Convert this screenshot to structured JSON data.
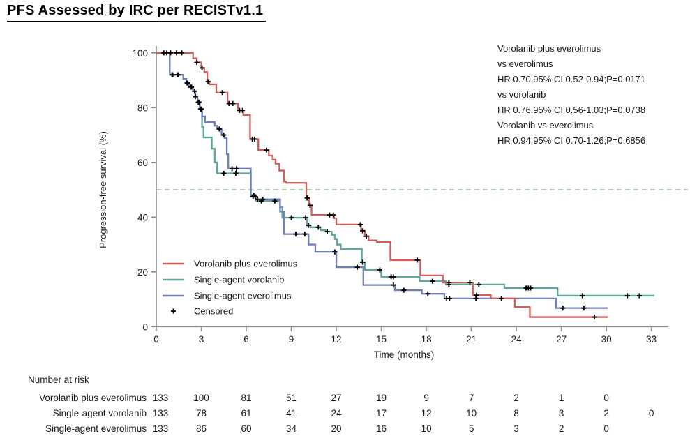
{
  "title": "PFS Assessed by IRC per RECISTv1.1",
  "chart_data": {
    "type": "line",
    "subtype": "kaplan-meier-step",
    "title": "PFS Assessed by IRC per RECISTv1.1",
    "xlabel": "Time (months)",
    "ylabel": "Progression-free survival (%)",
    "xlim": [
      0,
      33
    ],
    "ylim": [
      0,
      100
    ],
    "x_ticks": [
      0,
      3,
      6,
      9,
      12,
      15,
      18,
      21,
      24,
      27,
      30,
      33
    ],
    "y_ticks": [
      0,
      20,
      40,
      60,
      80,
      100
    ],
    "grid": "off",
    "reference_line": {
      "y": 50,
      "style": "dashed",
      "color": "#8cc98c"
    },
    "annotation_lines": [
      "Vorolanib plus everolimus",
      "vs everolimus",
      "HR 0.70,95% CI 0.52-0.94;P=0.0171",
      "vs vorolanib",
      "HR 0.76,95% CI 0.56-1.03;P=0.0738",
      "Vorolanib vs everolimus",
      "HR 0.94,95% CI 0.70-1.26;P=0.6856"
    ],
    "legend_position": "inside-lower-left",
    "legend": [
      {
        "label": "Vorolanib plus everolimus",
        "marker": "line",
        "color": "#cd5f5b"
      },
      {
        "label": "Single-agent vorolanib",
        "marker": "line",
        "color": "#5ea99d"
      },
      {
        "label": "Single-agent everolimus",
        "marker": "line",
        "color": "#6f80b6"
      },
      {
        "label": "Censored",
        "marker": "plus",
        "color": "#000000"
      }
    ],
    "series": [
      {
        "name": "Single-agent vorolanib",
        "color": "#5ea99d",
        "end_month": 33.2,
        "steps": [
          [
            0,
            100
          ],
          [
            0.9,
            92
          ],
          [
            1.8,
            90.5
          ],
          [
            2.0,
            89
          ],
          [
            2.2,
            87.5
          ],
          [
            2.45,
            86
          ],
          [
            2.6,
            84
          ],
          [
            2.75,
            82
          ],
          [
            2.9,
            79.5
          ],
          [
            3.05,
            73
          ],
          [
            3.15,
            69.1
          ],
          [
            3.7,
            65
          ],
          [
            3.9,
            60
          ],
          [
            4.05,
            56
          ],
          [
            6.3,
            47.5
          ],
          [
            6.65,
            45.9
          ],
          [
            8.25,
            43.6
          ],
          [
            8.4,
            39.8
          ],
          [
            10.05,
            37
          ],
          [
            10.3,
            36.3
          ],
          [
            10.95,
            35.2
          ],
          [
            11.3,
            34.7
          ],
          [
            11.7,
            33.5
          ],
          [
            11.9,
            32
          ],
          [
            12.05,
            30
          ],
          [
            12.3,
            28.4
          ],
          [
            13.7,
            23.5
          ],
          [
            13.9,
            20.7
          ],
          [
            15.0,
            18.2
          ],
          [
            17.55,
            16.6
          ],
          [
            19.3,
            15.4
          ],
          [
            23.2,
            14.1
          ],
          [
            26.75,
            11.3
          ]
        ],
        "censor_times": [
          1.05,
          1.4,
          2.05,
          2.3,
          2.55,
          2.8,
          2.95,
          4.5,
          5.3,
          6.45,
          6.6,
          7.0,
          7.9,
          9.0,
          9.95,
          10.15,
          10.8,
          11.4,
          13.75,
          14.9,
          15.65,
          15.8,
          18.4,
          19.5,
          21.5,
          24.65,
          24.8,
          24.95,
          28.4,
          31.4,
          32.2
        ]
      },
      {
        "name": "Single-agent everolimus",
        "color": "#6f80b6",
        "end_month": 30.1,
        "steps": [
          [
            0,
            100
          ],
          [
            0.9,
            92
          ],
          [
            1.8,
            90.5
          ],
          [
            2.0,
            89
          ],
          [
            2.2,
            87.5
          ],
          [
            2.45,
            86
          ],
          [
            2.6,
            84
          ],
          [
            2.75,
            82
          ],
          [
            2.9,
            79.5
          ],
          [
            3.05,
            76.8
          ],
          [
            3.25,
            74.7
          ],
          [
            3.9,
            73.4
          ],
          [
            4.05,
            72.2
          ],
          [
            4.35,
            70
          ],
          [
            4.55,
            68.8
          ],
          [
            4.7,
            63
          ],
          [
            4.8,
            57.7
          ],
          [
            6.3,
            48
          ],
          [
            6.65,
            46.5
          ],
          [
            8.25,
            42
          ],
          [
            8.5,
            33.8
          ],
          [
            10.15,
            30
          ],
          [
            10.6,
            27.3
          ],
          [
            12.0,
            21.7
          ],
          [
            13.8,
            15.2
          ],
          [
            15.9,
            13.3
          ],
          [
            17.7,
            12.0
          ],
          [
            19.2,
            10.3
          ],
          [
            26.65,
            6.8
          ]
        ],
        "censor_times": [
          1.1,
          1.45,
          2.1,
          2.35,
          2.6,
          2.85,
          3.0,
          4.2,
          4.5,
          5.05,
          5.35,
          6.5,
          6.75,
          7.1,
          9.3,
          9.9,
          11.9,
          13.4,
          15.8,
          16.5,
          18.1,
          19.35,
          19.55,
          21.3,
          23.0,
          27.1,
          28.5
        ]
      },
      {
        "name": "Vorolanib plus everolimus",
        "color": "#cd5f5b",
        "end_month": 30.1,
        "steps": [
          [
            0,
            100
          ],
          [
            2.45,
            98
          ],
          [
            2.7,
            96.5
          ],
          [
            3.0,
            94.5
          ],
          [
            3.2,
            93
          ],
          [
            3.4,
            89.5
          ],
          [
            3.55,
            88.5
          ],
          [
            4.0,
            85.5
          ],
          [
            4.75,
            81.5
          ],
          [
            5.45,
            79
          ],
          [
            5.8,
            77.3
          ],
          [
            6.25,
            68.5
          ],
          [
            6.8,
            64.5
          ],
          [
            7.5,
            62.5
          ],
          [
            7.75,
            61
          ],
          [
            7.95,
            59.5
          ],
          [
            8.2,
            57
          ],
          [
            8.5,
            53
          ],
          [
            8.65,
            52.5
          ],
          [
            10.0,
            47
          ],
          [
            10.2,
            44.3
          ],
          [
            10.35,
            40.8
          ],
          [
            11.85,
            39.6
          ],
          [
            12.0,
            37.3
          ],
          [
            13.65,
            35
          ],
          [
            13.9,
            33
          ],
          [
            14.15,
            31.5
          ],
          [
            14.7,
            30.9
          ],
          [
            15.6,
            24.3
          ],
          [
            17.6,
            18.7
          ],
          [
            19.1,
            16.1
          ],
          [
            21.1,
            11.5
          ],
          [
            22.3,
            10.3
          ],
          [
            23.9,
            7.2
          ],
          [
            24.9,
            3.5
          ]
        ],
        "censor_times": [
          0.5,
          0.7,
          0.95,
          1.35,
          1.7,
          2.7,
          3.05,
          3.45,
          4.4,
          4.85,
          5.1,
          5.55,
          5.75,
          6.4,
          6.55,
          7.35,
          10.05,
          10.25,
          11.55,
          11.8,
          13.6,
          13.75,
          14.0,
          17.4,
          19.5,
          20.9,
          21.35,
          29.2
        ]
      }
    ],
    "risk_table": {
      "header": "Number at risk",
      "months": [
        0,
        3,
        6,
        9,
        12,
        15,
        18,
        21,
        24,
        27,
        30,
        33
      ],
      "rows": [
        {
          "label": "Vorolanib plus everolimus",
          "values": [
            "133",
            "100",
            "81",
            "51",
            "27",
            "19",
            "9",
            "7",
            "2",
            "1",
            "0",
            ""
          ]
        },
        {
          "label": "Single-agent vorolanib",
          "values": [
            "133",
            "78",
            "61",
            "41",
            "24",
            "17",
            "12",
            "10",
            "8",
            "3",
            "2",
            "0"
          ]
        },
        {
          "label": "Single-agent everolimus",
          "values": [
            "133",
            "86",
            "60",
            "34",
            "20",
            "16",
            "10",
            "5",
            "3",
            "2",
            "0",
            ""
          ]
        }
      ]
    }
  }
}
